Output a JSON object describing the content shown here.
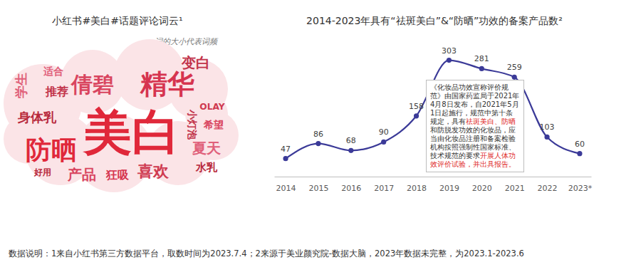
{
  "chart_data": [
    {
      "type": "wordcloud",
      "title": "小红书#美白#话题评论词云¹",
      "subtitle": "词的大小代表词频",
      "categories": [
        "美白",
        "精华",
        "防晒",
        "倩碧",
        "喜欢",
        "变白",
        "产品",
        "夏天",
        "身体乳",
        "学生",
        "推荐",
        "狂吸",
        "水乳",
        "小灯泡",
        "希望",
        "适合",
        "好用",
        "OLAY"
      ],
      "values": [
        100,
        56,
        53,
        44,
        32,
        29,
        29,
        29,
        26,
        26,
        24,
        24,
        22,
        21,
        21,
        21,
        18,
        18
      ],
      "colors": [
        "#e0283a",
        "#d6344f",
        "#e0283a",
        "#d9455f",
        "#cf3a50",
        "#c2334a",
        "#d9455f",
        "#e0607a",
        "#b8283b",
        "#e0607a",
        "#c2334a",
        "#d6344f",
        "#b8283b",
        "#c2334a",
        "#d9455f",
        "#e0607a",
        "#b8283b",
        "#cf3a50"
      ]
    },
    {
      "type": "line",
      "title": "2014-2023年具有“祛斑美白”&“防晒”功效的备案产品数²",
      "categories": [
        "2014",
        "2015",
        "2016",
        "2017",
        "2018",
        "2019",
        "2020",
        "2021",
        "2022",
        "2023*"
      ],
      "values": [
        47,
        86,
        68,
        90,
        158,
        303,
        281,
        259,
        103,
        60
      ],
      "color": "#3b3a98",
      "ylim": [
        0,
        330
      ],
      "marker": "circle",
      "line_style": "solid",
      "data_labels": true,
      "tick_labels": "x",
      "grid": false,
      "annotation": {
        "segments": [
          {
            "text": "《化妆品功效宣称评价规范》由国家药监局于2021年4月8日发布，自2021年5月1日起施行，规范中第十条规定，具有",
            "color": "#333333"
          },
          {
            "text": "祛斑美白、防晒",
            "color": "#e02a2a"
          },
          {
            "text": "和防脱发功效的化妆品，应当由化妆品注册和备案检验机构按照强制性国家标准、技术规范的要求",
            "color": "#333333"
          },
          {
            "text": "开展人体功效评价试验，并出具报告。",
            "color": "#e02a2a"
          }
        ]
      },
      "footnote": "数据说明：1来自小红书第三方数据平台，取数时间为2023.7.4；2来源于美业颜究院-数据大脑，2023年数据未完整，为2023.1-2023.6"
    }
  ]
}
